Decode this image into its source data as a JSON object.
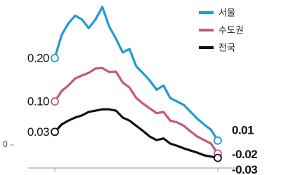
{
  "chart_data": {
    "type": "line",
    "categories": [
      null,
      null,
      null,
      null,
      null,
      null,
      null,
      null,
      null,
      null,
      null,
      null,
      null,
      null,
      null,
      null,
      null,
      null,
      null,
      null,
      null,
      null,
      null,
      null,
      null
    ],
    "ylim": [
      -0.05,
      0.33
    ],
    "yticks": [
      0
    ],
    "grid": false,
    "legend": "top-right",
    "series": [
      {
        "name": "서울",
        "color": "#1f9bd7",
        "values": [
          0.2,
          0.253,
          0.28,
          0.298,
          0.289,
          0.269,
          0.289,
          0.318,
          0.273,
          0.245,
          0.213,
          0.221,
          0.181,
          0.165,
          0.148,
          0.127,
          0.137,
          0.108,
          0.1,
          0.092,
          0.076,
          0.06,
          0.047,
          0.035,
          0.01
        ],
        "value_labels": [
          "0.20",
          null,
          null,
          null,
          null,
          null,
          null,
          null,
          null,
          null,
          null,
          null,
          null,
          null,
          null,
          null,
          null,
          null,
          null,
          null,
          null,
          null,
          null,
          null,
          "0.01"
        ]
      },
      {
        "name": "수도권",
        "color": "#c9557e",
        "values": [
          0.1,
          0.124,
          0.137,
          0.153,
          0.16,
          0.166,
          0.176,
          0.177,
          0.168,
          0.169,
          0.144,
          0.132,
          0.108,
          0.095,
          0.084,
          0.073,
          0.076,
          0.056,
          0.052,
          0.044,
          0.031,
          0.019,
          0.011,
          0.003,
          -0.02
        ],
        "value_labels": [
          "0.10",
          null,
          null,
          null,
          null,
          null,
          null,
          null,
          null,
          null,
          null,
          null,
          null,
          null,
          null,
          null,
          null,
          null,
          null,
          null,
          null,
          null,
          null,
          null,
          "-0.02"
        ]
      },
      {
        "name": "전국",
        "color": "#111111",
        "values": [
          0.03,
          0.047,
          0.056,
          0.063,
          0.068,
          0.076,
          0.079,
          0.082,
          0.082,
          0.079,
          0.063,
          0.056,
          0.044,
          0.032,
          0.019,
          0.011,
          0.015,
          0.003,
          -0.002,
          -0.008,
          -0.013,
          -0.018,
          -0.024,
          -0.027,
          -0.03
        ],
        "value_labels": [
          "0.03",
          null,
          null,
          null,
          null,
          null,
          null,
          null,
          null,
          null,
          null,
          null,
          null,
          null,
          null,
          null,
          null,
          null,
          null,
          null,
          null,
          null,
          null,
          null,
          "-0.03"
        ]
      }
    ]
  }
}
